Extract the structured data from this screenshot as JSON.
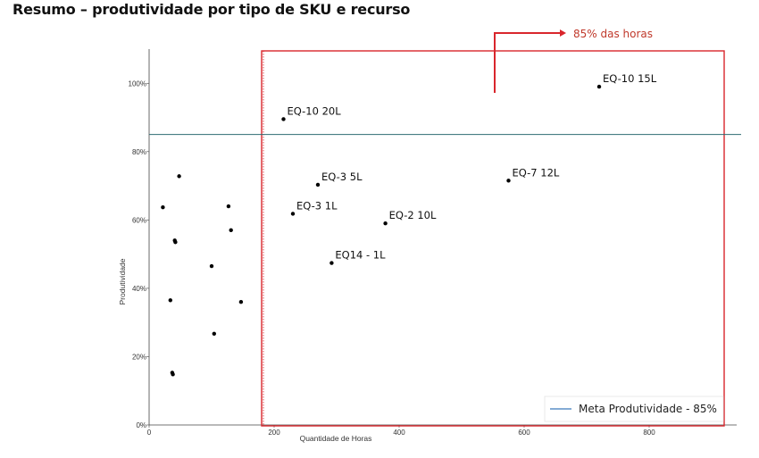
{
  "title": "Resumo – produtividade por tipo de SKU e recurso",
  "callout": {
    "text": "85% das horas",
    "color": "#d9262c"
  },
  "colors": {
    "meta_line": "#2e6b73",
    "highlight_box": "#d9262c",
    "points": "#000000",
    "legend_line": "#5b8fc7"
  },
  "chart_data": {
    "type": "scatter",
    "xlabel": "Quantidade de Horas",
    "ylabel": "Produtividade",
    "xlim": [
      0,
      940
    ],
    "ylim": [
      0,
      1.1
    ],
    "x_ticks": [
      0,
      200,
      400,
      600,
      800
    ],
    "y_ticks": [
      0,
      0.2,
      0.4,
      0.6,
      0.8,
      1.0
    ],
    "x_tick_labels": [
      "0",
      "200",
      "400",
      "600",
      "800"
    ],
    "y_tick_labels": [
      "0%",
      "20%",
      "40%",
      "60%",
      "80%",
      "100%"
    ],
    "reference_line": {
      "y": 0.85,
      "label": "Meta Produtividade - 85%"
    },
    "legend_position": "bottom-right",
    "highlight_region": {
      "x_from": 180,
      "x_to": 920,
      "description_label": "85% das horas"
    },
    "points": [
      {
        "x": 720,
        "y": 0.99,
        "label": "EQ-10 15L"
      },
      {
        "x": 215,
        "y": 0.895,
        "label": "EQ-10 20L"
      },
      {
        "x": 575,
        "y": 0.715,
        "label": "EQ-7 12L"
      },
      {
        "x": 270,
        "y": 0.703,
        "label": "EQ-3 5L"
      },
      {
        "x": 230,
        "y": 0.618,
        "label": "EQ-3 1L"
      },
      {
        "x": 378,
        "y": 0.59,
        "label": "EQ-2 10L"
      },
      {
        "x": 292,
        "y": 0.474,
        "label": "EQ14 - 1L"
      },
      {
        "x": 48,
        "y": 0.728,
        "label": ""
      },
      {
        "x": 22,
        "y": 0.637,
        "label": ""
      },
      {
        "x": 127,
        "y": 0.64,
        "label": ""
      },
      {
        "x": 131,
        "y": 0.57,
        "label": ""
      },
      {
        "x": 41,
        "y": 0.54,
        "label": ""
      },
      {
        "x": 42,
        "y": 0.535,
        "label": ""
      },
      {
        "x": 100,
        "y": 0.465,
        "label": ""
      },
      {
        "x": 34,
        "y": 0.365,
        "label": ""
      },
      {
        "x": 147,
        "y": 0.36,
        "label": ""
      },
      {
        "x": 104,
        "y": 0.267,
        "label": ""
      },
      {
        "x": 37,
        "y": 0.153,
        "label": ""
      },
      {
        "x": 38,
        "y": 0.148,
        "label": ""
      }
    ]
  }
}
